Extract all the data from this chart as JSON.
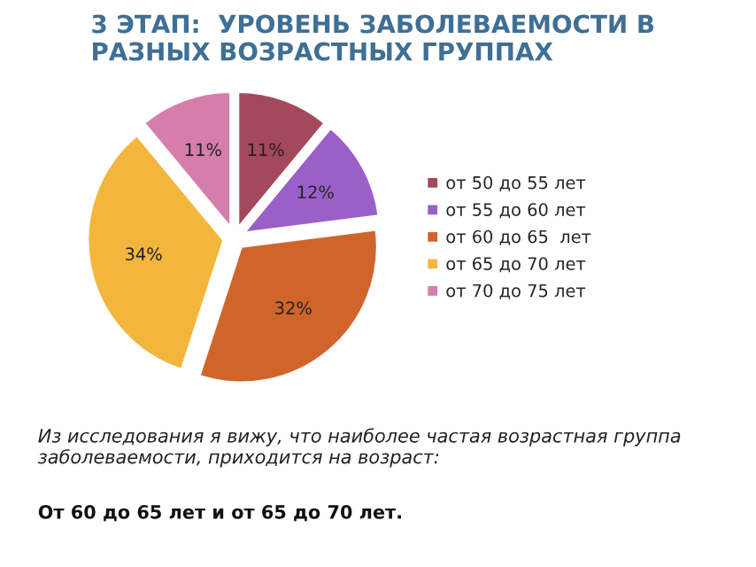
{
  "chart_data": {
    "type": "pie",
    "title": "3 ЭТАП:  УРОВЕНЬ ЗАБОЛЕВАЕМОСТИ В РАЗНЫХ ВОЗРАСТНЫХ ГРУППАХ",
    "categories": [
      "от 50 до 55 лет",
      "от 55 до 60 лет",
      "от 60 до 65  лет",
      "от 65 до 70 лет",
      "от 70 до 75 лет"
    ],
    "values": [
      11,
      12,
      32,
      34,
      11
    ],
    "colors": [
      "#a4485e",
      "#9b5fc8",
      "#d0652c",
      "#f3b63c",
      "#d67eab"
    ],
    "value_labels": [
      "11%",
      "12%",
      "32%",
      "34%",
      "11%"
    ],
    "legend": "right",
    "annotations": [
      "Из исследования я вижу, что наиболее частая возрастная группа заболеваемости, приходится на возраст:",
      "От 60 до 65 лет и от 65 до 70 лет."
    ]
  }
}
